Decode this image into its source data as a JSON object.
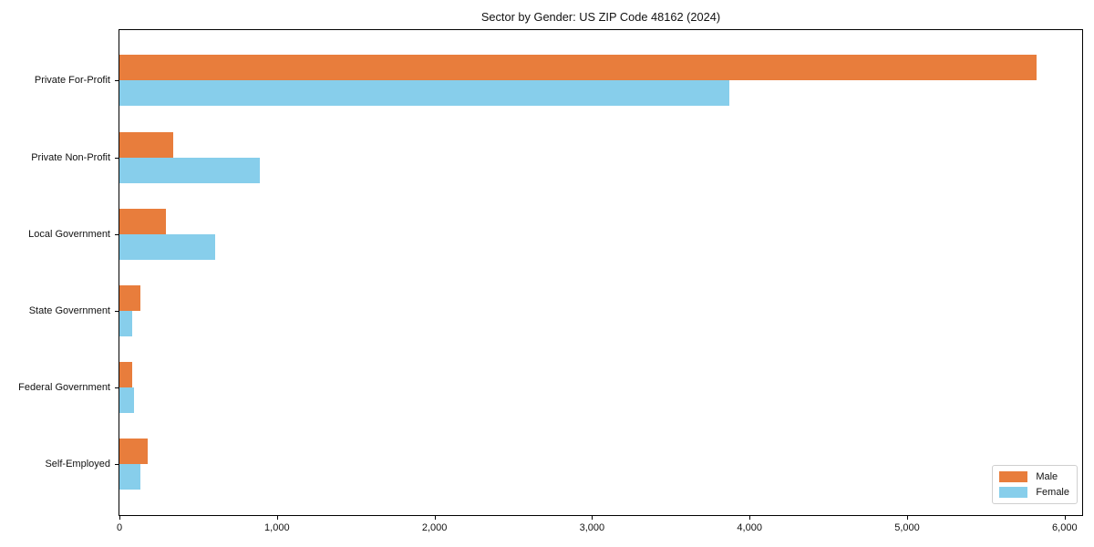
{
  "chart_data": {
    "type": "bar",
    "orientation": "horizontal",
    "title": "Sector by Gender: US ZIP Code 48162 (2024)",
    "categories": [
      "Private For-Profit",
      "Private Non-Profit",
      "Local Government",
      "State Government",
      "Federal Government",
      "Self-Employed"
    ],
    "series": [
      {
        "name": "Male",
        "color": "#e87d3c",
        "values": [
          5820,
          340,
          295,
          130,
          80,
          180
        ]
      },
      {
        "name": "Female",
        "color": "#87ceeb",
        "values": [
          3870,
          890,
          610,
          80,
          90,
          130
        ]
      }
    ],
    "xlabel": "",
    "ylabel": "",
    "xlim": [
      0,
      6111
    ],
    "x_ticks": [
      0,
      1000,
      2000,
      3000,
      4000,
      5000,
      6000
    ],
    "x_tick_labels": [
      "0",
      "1,000",
      "2,000",
      "3,000",
      "4,000",
      "5,000",
      "6,000"
    ],
    "grid": false,
    "legend_position": "lower right",
    "axis_color": "#000000",
    "background_color": "#ffffff"
  }
}
